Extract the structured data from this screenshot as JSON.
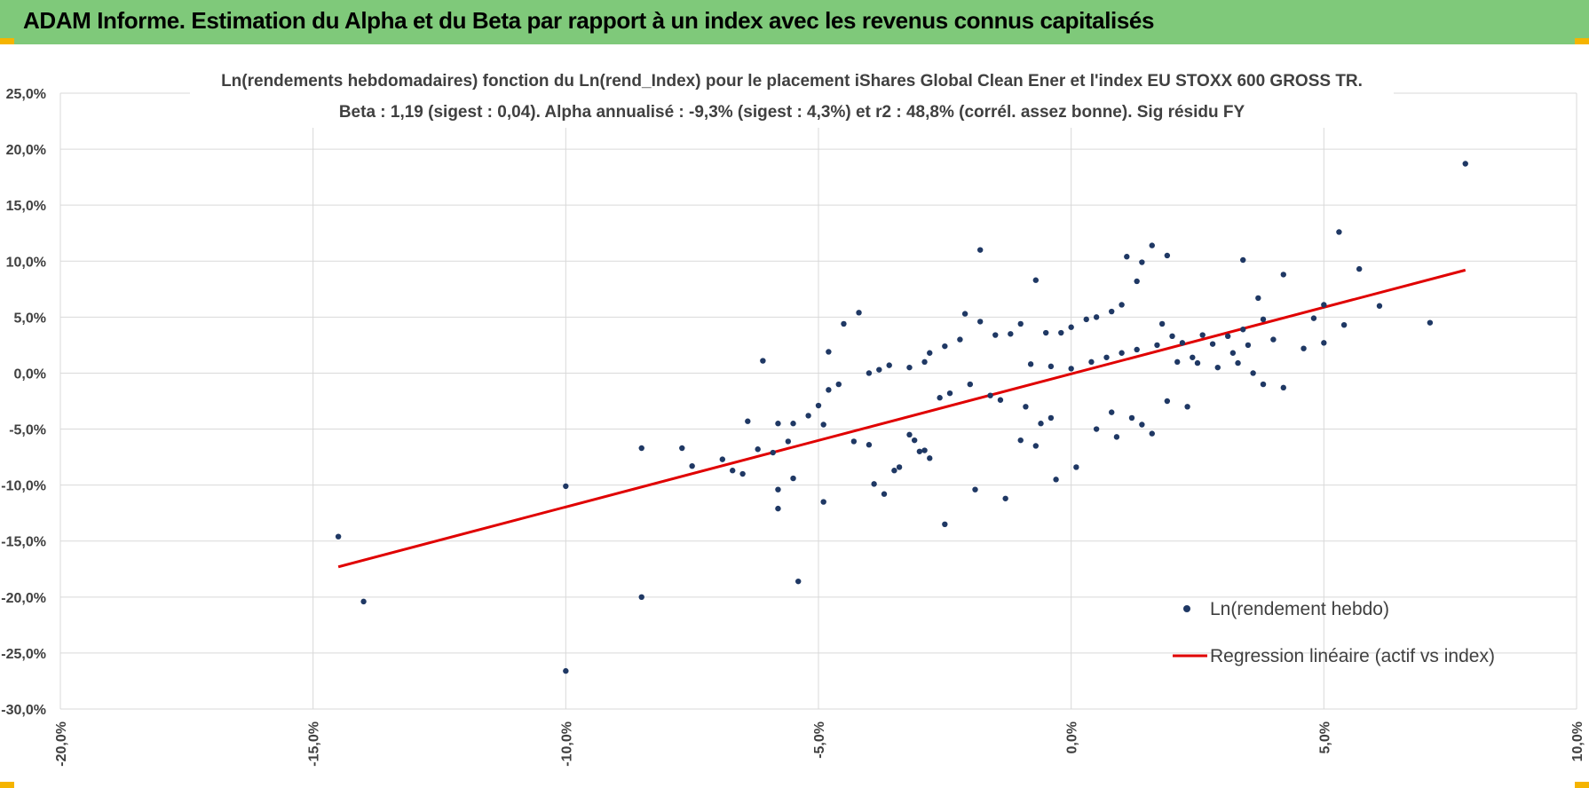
{
  "header": {
    "title": "ADAM Informe. Estimation du Alpha et du Beta par rapport à un index avec les revenus connus capitalisés"
  },
  "colors": {
    "header_bg": "#7fc97a",
    "points": "#1f3864",
    "regression": "#e00000",
    "grid": "#d9d9d9",
    "accent": "#f5b400"
  },
  "chart_data": {
    "type": "scatter",
    "title": "Ln(rendements hebdomadaires) fonction du Ln(rend_Index) pour le placement iShares Global Clean Ener et l'index EU STOXX 600 GROSS TR.",
    "subtitle": "Beta : 1,19 (sigest : 0,04).  Alpha annualisé : -9,3% (sigest : 4,3%) et r2 : 48,8% (corrél. assez bonne). Sig résidu FY",
    "xlim": [
      -0.2,
      0.1
    ],
    "ylim": [
      -0.3,
      0.25
    ],
    "x_ticks": [
      -0.2,
      -0.15,
      -0.1,
      -0.05,
      0.0,
      0.05,
      0.1
    ],
    "x_tick_labels": [
      "-20,0%",
      "-15,0%",
      "-10,0%",
      "-5,0%",
      "0,0%",
      "5,0%",
      "10,0%"
    ],
    "y_ticks": [
      0.25,
      0.2,
      0.15,
      0.1,
      0.05,
      0.0,
      -0.05,
      -0.1,
      -0.15,
      -0.2,
      -0.25,
      -0.3
    ],
    "y_tick_labels": [
      "25,0%",
      "20,0%",
      "15,0%",
      "10,0%",
      "5,0%",
      "0,0%",
      "-5,0%",
      "-10,0%",
      "-15,0%",
      "-20,0%",
      "-25,0%",
      "-30,0%"
    ],
    "grid": true,
    "legend_position": "bottom-right",
    "series": [
      {
        "name": "Ln(rendement hebdo)",
        "kind": "scatter",
        "color": "#1f3864",
        "points": [
          [
            0.078,
            0.187
          ],
          [
            0.053,
            0.126
          ],
          [
            0.057,
            0.093
          ],
          [
            0.061,
            0.06
          ],
          [
            0.071,
            0.045
          ],
          [
            0.054,
            0.043
          ],
          [
            0.05,
            0.061
          ],
          [
            0.048,
            0.049
          ],
          [
            0.042,
            0.088
          ],
          [
            0.037,
            0.067
          ],
          [
            0.034,
            0.101
          ],
          [
            0.038,
            0.048
          ],
          [
            0.04,
            0.03
          ],
          [
            0.046,
            0.022
          ],
          [
            0.05,
            0.027
          ],
          [
            0.042,
            -0.013
          ],
          [
            0.038,
            -0.01
          ],
          [
            0.036,
            0.0
          ],
          [
            0.034,
            0.039
          ],
          [
            0.031,
            0.033
          ],
          [
            0.028,
            0.026
          ],
          [
            0.026,
            0.034
          ],
          [
            0.024,
            0.014
          ],
          [
            0.022,
            0.027
          ],
          [
            0.02,
            0.033
          ],
          [
            0.018,
            0.044
          ],
          [
            0.016,
            0.114
          ],
          [
            0.011,
            0.104
          ],
          [
            0.019,
            0.105
          ],
          [
            0.014,
            0.099
          ],
          [
            0.013,
            0.082
          ],
          [
            0.01,
            0.061
          ],
          [
            0.008,
            0.055
          ],
          [
            0.005,
            0.05
          ],
          [
            0.003,
            0.048
          ],
          [
            0.0,
            0.041
          ],
          [
            -0.002,
            0.036
          ],
          [
            -0.005,
            0.036
          ],
          [
            -0.007,
            0.083
          ],
          [
            -0.01,
            0.044
          ],
          [
            -0.012,
            0.035
          ],
          [
            -0.015,
            0.034
          ],
          [
            -0.018,
            0.11
          ],
          [
            -0.018,
            0.046
          ],
          [
            -0.022,
            0.03
          ],
          [
            -0.021,
            0.053
          ],
          [
            -0.025,
            0.024
          ],
          [
            -0.028,
            0.018
          ],
          [
            -0.029,
            0.01
          ],
          [
            -0.032,
            0.005
          ],
          [
            -0.036,
            0.007
          ],
          [
            -0.038,
            0.003
          ],
          [
            -0.04,
            0.0
          ],
          [
            -0.042,
            0.054
          ],
          [
            -0.045,
            0.044
          ],
          [
            -0.048,
            0.019
          ],
          [
            -0.061,
            0.011
          ],
          [
            -0.046,
            -0.01
          ],
          [
            -0.048,
            -0.015
          ],
          [
            -0.05,
            -0.029
          ],
          [
            -0.052,
            -0.038
          ],
          [
            -0.049,
            -0.046
          ],
          [
            -0.055,
            -0.045
          ],
          [
            -0.056,
            -0.061
          ],
          [
            -0.058,
            -0.045
          ],
          [
            -0.059,
            -0.071
          ],
          [
            -0.062,
            -0.068
          ],
          [
            -0.064,
            -0.043
          ],
          [
            -0.065,
            -0.09
          ],
          [
            -0.067,
            -0.087
          ],
          [
            -0.069,
            -0.077
          ],
          [
            -0.075,
            -0.083
          ],
          [
            -0.077,
            -0.067
          ],
          [
            -0.085,
            -0.067
          ],
          [
            -0.085,
            -0.2
          ],
          [
            -0.1,
            -0.101
          ],
          [
            -0.1,
            -0.266
          ],
          [
            -0.14,
            -0.204
          ],
          [
            -0.145,
            -0.146
          ],
          [
            -0.054,
            -0.186
          ],
          [
            -0.058,
            -0.104
          ],
          [
            -0.058,
            -0.121
          ],
          [
            -0.055,
            -0.094
          ],
          [
            -0.049,
            -0.115
          ],
          [
            -0.043,
            -0.061
          ],
          [
            -0.04,
            -0.064
          ],
          [
            -0.039,
            -0.099
          ],
          [
            -0.037,
            -0.108
          ],
          [
            -0.035,
            -0.087
          ],
          [
            -0.034,
            -0.084
          ],
          [
            -0.032,
            -0.055
          ],
          [
            -0.031,
            -0.06
          ],
          [
            -0.03,
            -0.07
          ],
          [
            -0.029,
            -0.069
          ],
          [
            -0.028,
            -0.076
          ],
          [
            -0.025,
            -0.135
          ],
          [
            -0.019,
            -0.104
          ],
          [
            -0.013,
            -0.112
          ],
          [
            -0.01,
            -0.06
          ],
          [
            -0.007,
            -0.065
          ],
          [
            -0.006,
            -0.045
          ],
          [
            -0.003,
            -0.095
          ],
          [
            0.001,
            -0.084
          ],
          [
            0.005,
            -0.05
          ],
          [
            0.009,
            -0.057
          ],
          [
            0.014,
            -0.046
          ],
          [
            0.016,
            -0.054
          ],
          [
            0.023,
            -0.03
          ],
          [
            0.019,
            -0.025
          ],
          [
            0.012,
            -0.04
          ],
          [
            0.008,
            -0.035
          ],
          [
            -0.004,
            -0.04
          ],
          [
            -0.009,
            -0.03
          ],
          [
            -0.014,
            -0.024
          ],
          [
            -0.016,
            -0.02
          ],
          [
            -0.02,
            -0.01
          ],
          [
            -0.024,
            -0.018
          ],
          [
            -0.026,
            -0.022
          ],
          [
            -0.008,
            0.008
          ],
          [
            -0.004,
            0.006
          ],
          [
            0.0,
            0.004
          ],
          [
            0.004,
            0.01
          ],
          [
            0.007,
            0.014
          ],
          [
            0.01,
            0.018
          ],
          [
            0.013,
            0.021
          ],
          [
            0.017,
            0.025
          ],
          [
            0.021,
            0.01
          ],
          [
            0.025,
            0.009
          ],
          [
            0.029,
            0.005
          ],
          [
            0.032,
            0.018
          ],
          [
            0.035,
            0.025
          ],
          [
            0.033,
            0.009
          ]
        ]
      },
      {
        "name": "Regression linéaire (actif vs index)",
        "kind": "line",
        "color": "#e00000",
        "points": [
          [
            -0.145,
            -0.173
          ],
          [
            0.078,
            0.092
          ]
        ]
      }
    ]
  }
}
